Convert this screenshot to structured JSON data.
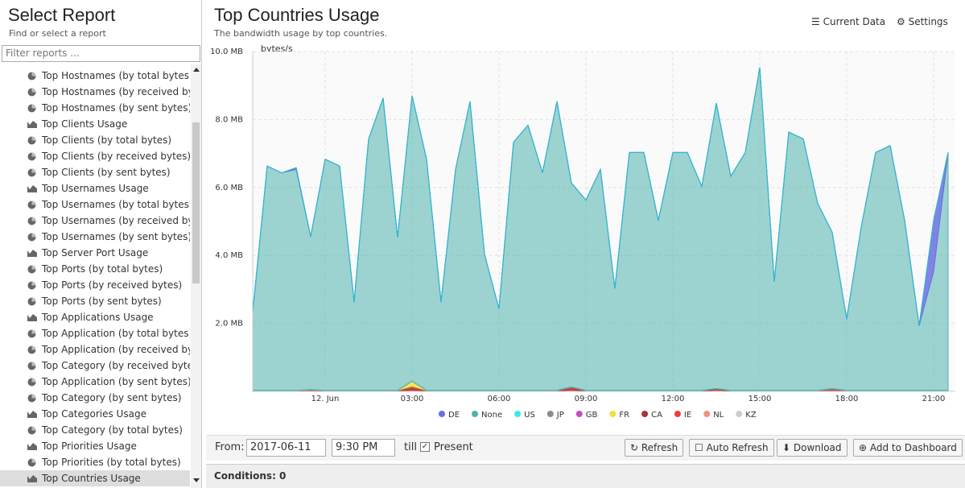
{
  "sidebar": {
    "title": "Select Report",
    "subtitle": "Find or select a report",
    "filter_placeholder": "Filter reports ...",
    "items": [
      "Top Hostnames (by total bytes)",
      "Top Hostnames (by received byte...",
      "Top Hostnames (by sent bytes)",
      "Top Clients Usage",
      "Top Clients (by total bytes)",
      "Top Clients (by received bytes)",
      "Top Clients (by sent bytes)",
      "Top Usernames Usage",
      "Top Usernames (by total bytes)",
      "Top Usernames (by received bytes)",
      "Top Usernames (by sent bytes)",
      "Top Server Port Usage",
      "Top Ports (by total bytes)",
      "Top Ports (by received bytes)",
      "Top Ports (by sent bytes)",
      "Top Applications Usage",
      "Top Application (by total bytes)",
      "Top Application (by received bytes)",
      "Top Category (by received bytes)",
      "Top Application (by sent bytes)",
      "Top Category (by sent bytes)",
      "Top Categories Usage",
      "Top Category (by total bytes)",
      "Top Priorities Usage",
      "Top Priorities (by total bytes)",
      "Top Countries Usage"
    ]
  },
  "header": {
    "title": "Top Countries Usage",
    "subtitle": "The bandwidth usage by top countries.",
    "current_data": "Current Data",
    "settings": "Settings"
  },
  "chart_data": {
    "type": "area",
    "stacked": true,
    "y_label": "bytes/s",
    "grid": true,
    "ylim": [
      0,
      10
    ],
    "yticks": [
      {
        "value": 2,
        "label": "2.0 MB"
      },
      {
        "value": 4,
        "label": "4.0 MB"
      },
      {
        "value": 6,
        "label": "6.0 MB"
      },
      {
        "value": 8,
        "label": "8.0 MB"
      },
      {
        "value": 10,
        "label": "10.0 MB"
      }
    ],
    "categories": [
      null,
      null,
      null,
      null,
      null,
      "12. Jun",
      null,
      null,
      null,
      null,
      null,
      "03:00",
      null,
      null,
      null,
      null,
      null,
      "06:00",
      null,
      null,
      null,
      null,
      null,
      "09:00",
      null,
      null,
      null,
      null,
      null,
      "12:00",
      null,
      null,
      null,
      null,
      null,
      "15:00",
      null,
      null,
      null,
      null,
      null,
      "18:00",
      null,
      null,
      null,
      null,
      null,
      "21:00",
      null
    ],
    "series": [
      {
        "name": "DE",
        "color": "#6a6fe0",
        "values": [
          0,
          0,
          0,
          0.05,
          0,
          0,
          0,
          0,
          0,
          0,
          0,
          0,
          0,
          0,
          0,
          0,
          0,
          0,
          0,
          0,
          0,
          0,
          0,
          0,
          0,
          0,
          0,
          0,
          0,
          0,
          0,
          0,
          0,
          0,
          0,
          0,
          0,
          0,
          0,
          0,
          0,
          0,
          0,
          0,
          0,
          0,
          0,
          1.5,
          0
        ]
      },
      {
        "name": "None",
        "color": "#4fb3ad",
        "values": [
          2.3,
          6.6,
          6.4,
          6.5,
          4.5,
          6.8,
          6.6,
          2.6,
          7.4,
          8.6,
          4.5,
          8.4,
          6.8,
          2.6,
          6.5,
          8.5,
          4.0,
          2.4,
          7.3,
          7.8,
          6.4,
          8.5,
          6.0,
          5.6,
          6.5,
          3.0,
          7.0,
          7.0,
          5.0,
          7.0,
          7.0,
          6.0,
          8.4,
          6.3,
          7.0,
          9.5,
          3.2,
          7.6,
          7.4,
          5.5,
          4.6,
          2.1,
          4.8,
          7.0,
          7.2,
          5.0,
          1.9,
          3.5,
          7.0
        ]
      },
      {
        "name": "US",
        "color": "#3ee8e8",
        "values": [
          0,
          0,
          0,
          0,
          0,
          0,
          0,
          0,
          0,
          0,
          0,
          0,
          0,
          0,
          0,
          0,
          0,
          0,
          0,
          0,
          0,
          0,
          0,
          0,
          0,
          0,
          0,
          0,
          0,
          0,
          0,
          0,
          0,
          0,
          0,
          0,
          0,
          0,
          0,
          0,
          0,
          0,
          0,
          0,
          0,
          0,
          0,
          0,
          0
        ]
      },
      {
        "name": "JP",
        "color": "#8c8c8c",
        "values": [
          0,
          0,
          0,
          0,
          0,
          0,
          0,
          0,
          0,
          0,
          0,
          0,
          0,
          0,
          0,
          0,
          0,
          0,
          0,
          0,
          0,
          0,
          0,
          0,
          0,
          0,
          0,
          0,
          0,
          0,
          0,
          0,
          0,
          0,
          0,
          0,
          0,
          0,
          0,
          0,
          0,
          0,
          0,
          0,
          0,
          0,
          0,
          0,
          0
        ]
      },
      {
        "name": "GB",
        "color": "#c04fc0",
        "values": [
          0,
          0,
          0,
          0,
          0,
          0,
          0,
          0,
          0,
          0,
          0,
          0,
          0,
          0,
          0,
          0,
          0,
          0,
          0,
          0,
          0,
          0,
          0,
          0,
          0,
          0,
          0,
          0,
          0,
          0,
          0,
          0,
          0,
          0,
          0,
          0,
          0,
          0,
          0,
          0,
          0,
          0,
          0,
          0,
          0,
          0,
          0,
          0,
          0
        ]
      },
      {
        "name": "FR",
        "color": "#f0e040",
        "values": [
          0,
          0,
          0,
          0,
          0,
          0,
          0,
          0,
          0,
          0,
          0,
          0.15,
          0,
          0,
          0,
          0,
          0,
          0,
          0,
          0,
          0,
          0,
          0,
          0,
          0,
          0,
          0,
          0,
          0,
          0,
          0,
          0,
          0,
          0,
          0,
          0,
          0,
          0,
          0,
          0,
          0,
          0,
          0,
          0,
          0,
          0,
          0,
          0,
          0
        ]
      },
      {
        "name": "CA",
        "color": "#b03030",
        "values": [
          0.03,
          0.03,
          0.03,
          0.03,
          0.05,
          0.03,
          0.03,
          0.03,
          0.03,
          0.03,
          0.03,
          0.1,
          0.03,
          0.03,
          0.03,
          0.03,
          0.03,
          0.03,
          0.03,
          0.03,
          0.03,
          0.03,
          0.08,
          0.03,
          0.03,
          0.03,
          0.03,
          0.03,
          0.03,
          0.03,
          0.03,
          0.03,
          0.03,
          0.03,
          0.03,
          0.03,
          0.03,
          0.03,
          0.03,
          0.03,
          0.08,
          0.03,
          0.03,
          0.03,
          0.03,
          0.03,
          0.03,
          0.03,
          0.03
        ]
      },
      {
        "name": "IE",
        "color": "#e84040",
        "values": [
          0,
          0,
          0,
          0,
          0,
          0,
          0,
          0,
          0,
          0,
          0,
          0.05,
          0,
          0,
          0,
          0,
          0,
          0,
          0,
          0,
          0,
          0,
          0.05,
          0,
          0,
          0,
          0,
          0,
          0,
          0,
          0,
          0,
          0.05,
          0,
          0,
          0,
          0,
          0,
          0,
          0,
          0,
          0,
          0,
          0,
          0,
          0,
          0,
          0,
          0
        ]
      },
      {
        "name": "NL",
        "color": "#f09080",
        "values": [
          0,
          0,
          0,
          0,
          0,
          0,
          0,
          0,
          0,
          0,
          0,
          0,
          0,
          0,
          0,
          0,
          0,
          0,
          0,
          0,
          0,
          0,
          0,
          0,
          0,
          0,
          0,
          0,
          0,
          0,
          0,
          0,
          0,
          0,
          0,
          0,
          0,
          0,
          0,
          0,
          0,
          0,
          0,
          0,
          0,
          0,
          0,
          0,
          0
        ]
      },
      {
        "name": "KZ",
        "color": "#cccccc",
        "values": [
          0,
          0,
          0,
          0,
          0,
          0,
          0,
          0,
          0,
          0,
          0,
          0,
          0,
          0,
          0,
          0,
          0,
          0,
          0,
          0,
          0,
          0,
          0,
          0,
          0,
          0,
          0,
          0,
          0,
          0,
          0,
          0,
          0,
          0,
          0,
          0,
          0,
          0,
          0,
          0,
          0,
          0,
          0,
          0,
          0,
          0,
          0,
          0,
          0
        ]
      }
    ]
  },
  "toolbar": {
    "from_label": "From:",
    "date": "2017-06-11",
    "time": "9:30 PM",
    "till_label": "till",
    "present_label": "Present",
    "refresh": "Refresh",
    "auto_refresh": "Auto Refresh",
    "download": "Download",
    "add_to_dashboard": "Add to Dashboard"
  },
  "footer": {
    "conditions": "Conditions: 0"
  }
}
